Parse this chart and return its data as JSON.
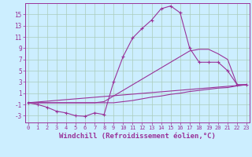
{
  "background_color": "#cceeff",
  "line_color": "#993399",
  "grid_color": "#aaccbb",
  "xlabel": "Windchill (Refroidissement éolien,°C)",
  "xlabel_fontsize": 6.5,
  "ytick_labels": [
    "-3",
    "-1",
    "1",
    "3",
    "5",
    "7",
    "9",
    "11",
    "13",
    "15"
  ],
  "ytick_vals": [
    -3,
    -1,
    1,
    3,
    5,
    7,
    9,
    11,
    13,
    15
  ],
  "xtick_vals": [
    0,
    1,
    2,
    3,
    4,
    5,
    6,
    7,
    8,
    9,
    10,
    11,
    12,
    13,
    14,
    15,
    16,
    17,
    18,
    19,
    20,
    21,
    22,
    23
  ],
  "xlim": [
    -0.3,
    23.3
  ],
  "ylim": [
    -4.2,
    17.0
  ],
  "line1_x": [
    0,
    1,
    2,
    3,
    4,
    5,
    6,
    7,
    8,
    9,
    10,
    11,
    12,
    13,
    14,
    15,
    16,
    17,
    18,
    19,
    20,
    21,
    22,
    23
  ],
  "line1_y": [
    -0.7,
    -0.7,
    -0.7,
    -0.7,
    -0.7,
    -0.7,
    -0.7,
    -0.7,
    -0.7,
    -0.7,
    -0.5,
    -0.3,
    0.0,
    0.3,
    0.5,
    0.8,
    1.0,
    1.3,
    1.5,
    1.7,
    1.9,
    2.0,
    2.3,
    2.5
  ],
  "line2_x": [
    0,
    23
  ],
  "line2_y": [
    -0.7,
    2.5
  ],
  "line3_x": [
    0,
    1,
    2,
    3,
    4,
    5,
    6,
    7,
    8,
    9,
    10,
    11,
    12,
    13,
    14,
    15,
    16,
    17,
    18,
    19,
    20,
    21,
    22,
    23
  ],
  "line3_y": [
    -0.7,
    -0.7,
    -0.7,
    -0.7,
    -0.7,
    -0.7,
    -0.7,
    -0.7,
    -0.5,
    0.5,
    1.5,
    2.5,
    3.5,
    4.5,
    5.5,
    6.5,
    7.5,
    8.5,
    8.8,
    8.8,
    8.0,
    7.0,
    2.5,
    2.5
  ],
  "line4_x": [
    0,
    1,
    2,
    3,
    4,
    5,
    6,
    7,
    8,
    9,
    10,
    11,
    12,
    13,
    14,
    15,
    16,
    17,
    18,
    19,
    20,
    21,
    22,
    23
  ],
  "line4_y": [
    -0.7,
    -1.0,
    -1.5,
    -2.2,
    -2.5,
    -3.0,
    -3.1,
    -2.5,
    -2.8,
    3.0,
    7.5,
    10.8,
    12.5,
    14.0,
    16.0,
    16.5,
    15.3,
    9.0,
    6.5,
    6.5,
    6.5,
    5.0,
    2.5,
    2.5
  ]
}
